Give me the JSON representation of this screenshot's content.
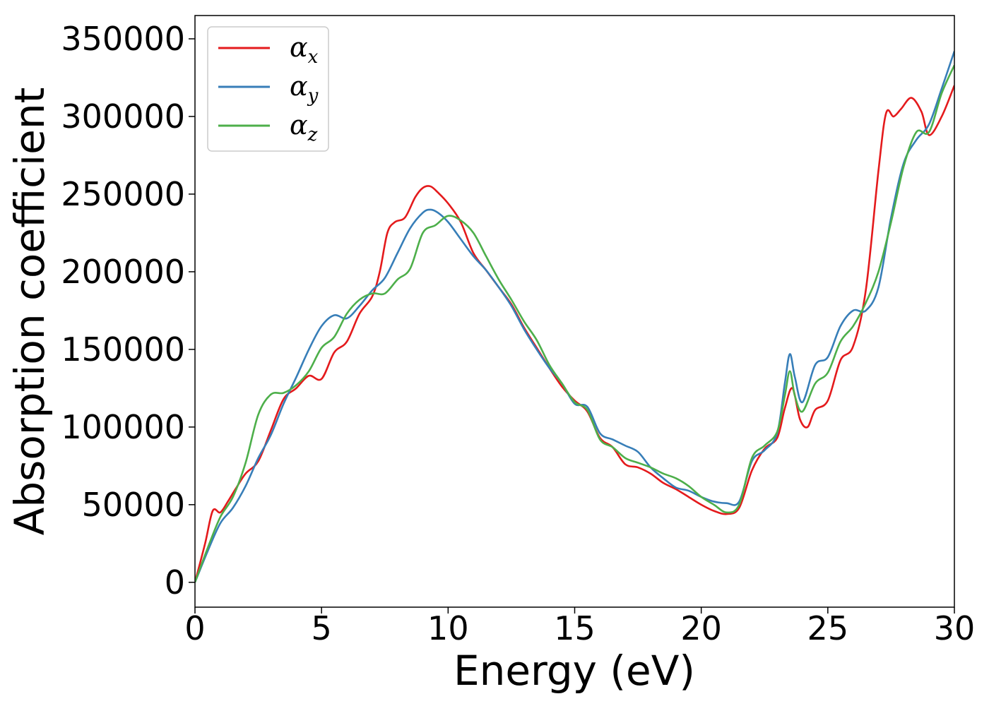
{
  "chart_data": {
    "type": "line",
    "title": "",
    "xlabel": "Energy (eV)",
    "ylabel": "Absorption coefficient",
    "xlim": [
      0,
      30
    ],
    "ylim": [
      -16000,
      365000
    ],
    "xticks": [
      0,
      5,
      10,
      15,
      20,
      25,
      30
    ],
    "xtick_labels": [
      "0",
      "5",
      "10",
      "15",
      "20",
      "25",
      "30"
    ],
    "yticks": [
      0,
      50000,
      100000,
      150000,
      200000,
      250000,
      300000,
      350000
    ],
    "ytick_labels": [
      "0",
      "50000",
      "100000",
      "150000",
      "200000",
      "250000",
      "300000",
      "350000"
    ],
    "grid": false,
    "legend_position": "top-left",
    "series": [
      {
        "name": "αx",
        "symbol": "α",
        "subscript": "x",
        "color": "#e41a1c",
        "x": [
          0,
          0.4,
          0.7,
          1.0,
          1.3,
          1.6,
          2.0,
          2.5,
          3.0,
          3.5,
          4.0,
          4.5,
          5.0,
          5.5,
          6.0,
          6.5,
          7.0,
          7.3,
          7.6,
          7.9,
          8.3,
          8.7,
          9.0,
          9.3,
          9.6,
          10.0,
          10.5,
          11.0,
          11.5,
          12.0,
          12.5,
          13.0,
          13.5,
          14.0,
          14.5,
          15.0,
          15.5,
          16.0,
          16.5,
          17.0,
          17.5,
          18.0,
          18.5,
          19.0,
          19.5,
          20.0,
          20.5,
          21.0,
          21.5,
          22.0,
          22.5,
          23.0,
          23.3,
          23.6,
          23.9,
          24.2,
          24.5,
          25.0,
          25.5,
          26.0,
          26.5,
          27.0,
          27.3,
          27.6,
          27.9,
          28.3,
          28.7,
          29.0,
          29.5,
          30.0
        ],
        "values": [
          0,
          25000,
          46000,
          45000,
          52000,
          60000,
          70000,
          78000,
          98000,
          118000,
          125000,
          133000,
          131000,
          148000,
          155000,
          173000,
          184000,
          200000,
          225000,
          232000,
          235000,
          248000,
          254000,
          255000,
          251000,
          244000,
          232000,
          212000,
          201000,
          190000,
          179000,
          164000,
          151000,
          138000,
          126000,
          117000,
          110000,
          93000,
          87000,
          76000,
          74000,
          70000,
          64000,
          60000,
          55000,
          50000,
          46000,
          44000,
          48000,
          72000,
          86000,
          93000,
          112000,
          125000,
          105000,
          100000,
          111000,
          117000,
          143000,
          152000,
          188000,
          265000,
          302000,
          300000,
          305000,
          312000,
          303000,
          288000,
          300000,
          320000
        ]
      },
      {
        "name": "αy",
        "symbol": "α",
        "subscript": "y",
        "color": "#377eb8",
        "x": [
          0,
          0.5,
          1.0,
          1.5,
          2.0,
          2.5,
          3.0,
          3.5,
          4.0,
          4.5,
          5.0,
          5.5,
          6.0,
          6.5,
          7.0,
          7.5,
          8.0,
          8.5,
          9.0,
          9.3,
          9.6,
          10.0,
          10.5,
          11.0,
          11.5,
          12.0,
          12.5,
          13.0,
          13.5,
          14.0,
          14.5,
          15.0,
          15.5,
          16.0,
          16.5,
          17.0,
          17.5,
          18.0,
          18.5,
          19.0,
          19.5,
          20.0,
          20.5,
          21.0,
          21.5,
          22.0,
          22.5,
          23.0,
          23.3,
          23.5,
          23.7,
          24.0,
          24.5,
          25.0,
          25.5,
          26.0,
          26.5,
          27.0,
          27.5,
          28.0,
          28.5,
          29.0,
          29.5,
          30.0
        ],
        "values": [
          0,
          20000,
          38000,
          48000,
          62000,
          80000,
          95000,
          115000,
          132000,
          150000,
          165000,
          172000,
          170000,
          178000,
          188000,
          196000,
          212000,
          228000,
          238000,
          240000,
          238000,
          232000,
          221000,
          210000,
          201000,
          190000,
          178000,
          163000,
          150000,
          138000,
          128000,
          115000,
          113000,
          96000,
          92000,
          88000,
          84000,
          74000,
          67000,
          61000,
          59000,
          55000,
          52000,
          51000,
          52000,
          78000,
          85000,
          96000,
          128000,
          147000,
          132000,
          116000,
          140000,
          145000,
          165000,
          175000,
          175000,
          190000,
          235000,
          270000,
          285000,
          295000,
          318000,
          342000
        ]
      },
      {
        "name": "αz",
        "symbol": "α",
        "subscript": "z",
        "color": "#4daf4a",
        "x": [
          0,
          0.5,
          1.0,
          1.5,
          2.0,
          2.5,
          3.0,
          3.5,
          4.0,
          4.5,
          5.0,
          5.5,
          6.0,
          6.5,
          7.0,
          7.5,
          8.0,
          8.5,
          9.0,
          9.5,
          10.0,
          10.5,
          11.0,
          11.5,
          12.0,
          12.5,
          13.0,
          13.5,
          14.0,
          14.5,
          15.0,
          15.5,
          16.0,
          16.5,
          17.0,
          17.5,
          18.0,
          18.5,
          19.0,
          19.5,
          20.0,
          20.5,
          21.0,
          21.5,
          22.0,
          22.5,
          23.0,
          23.3,
          23.5,
          23.7,
          24.0,
          24.5,
          25.0,
          25.5,
          26.0,
          26.5,
          27.0,
          27.5,
          28.0,
          28.5,
          29.0,
          29.5,
          30.0
        ],
        "values": [
          0,
          22000,
          42000,
          55000,
          77000,
          108000,
          121000,
          122000,
          127000,
          136000,
          151000,
          158000,
          173000,
          182000,
          186000,
          186000,
          195000,
          202000,
          225000,
          230000,
          236000,
          233000,
          225000,
          210000,
          195000,
          182000,
          168000,
          156000,
          140000,
          128000,
          116000,
          111000,
          92000,
          87000,
          80000,
          77000,
          74000,
          70000,
          67000,
          62000,
          55000,
          50000,
          45000,
          50000,
          80000,
          88000,
          97000,
          120000,
          136000,
          120000,
          110000,
          128000,
          135000,
          155000,
          165000,
          180000,
          200000,
          232000,
          268000,
          290000,
          290000,
          315000,
          333000
        ]
      }
    ]
  }
}
